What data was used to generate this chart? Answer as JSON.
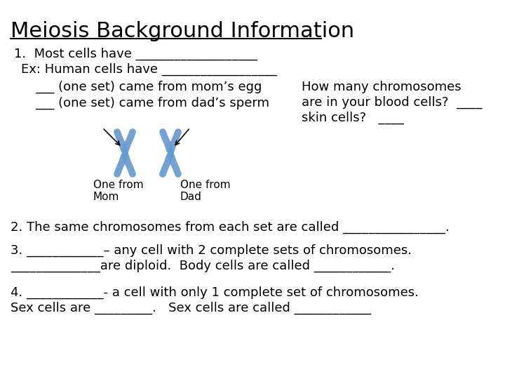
{
  "title": "Meiosis Background Information",
  "bg_color": "#ffffff",
  "text_color": "#000000",
  "line1": "1.  Most cells have ___________________",
  "line2": "Ex: Human cells have __________________",
  "line3a": "___ (one set) came from mom’s egg",
  "line3b": "___ (one set) came from dad’s sperm",
  "sidebox_l1": "How many chromosomes",
  "sidebox_l2": "are in your blood cells?  ____",
  "sidebox_l3": "skin cells?   ____",
  "label_mom": "One from\nMom",
  "label_dad": "One from\nDad",
  "line4": "2. The same chromosomes from each set are called ________________.",
  "line5a": "3. ____________– any cell with 2 complete sets of chromosomes.",
  "line5b": "______________are diploid.  Body cells are called ____________.",
  "line6a": "4. ____________- a cell with only 1 complete set of chromosomes.",
  "line6b": "Sex cells are _________.   Sex cells are called ____________",
  "font_size_title": 22,
  "font_size_body": 13,
  "font_size_small": 11,
  "chrom_color": "#6699cc"
}
